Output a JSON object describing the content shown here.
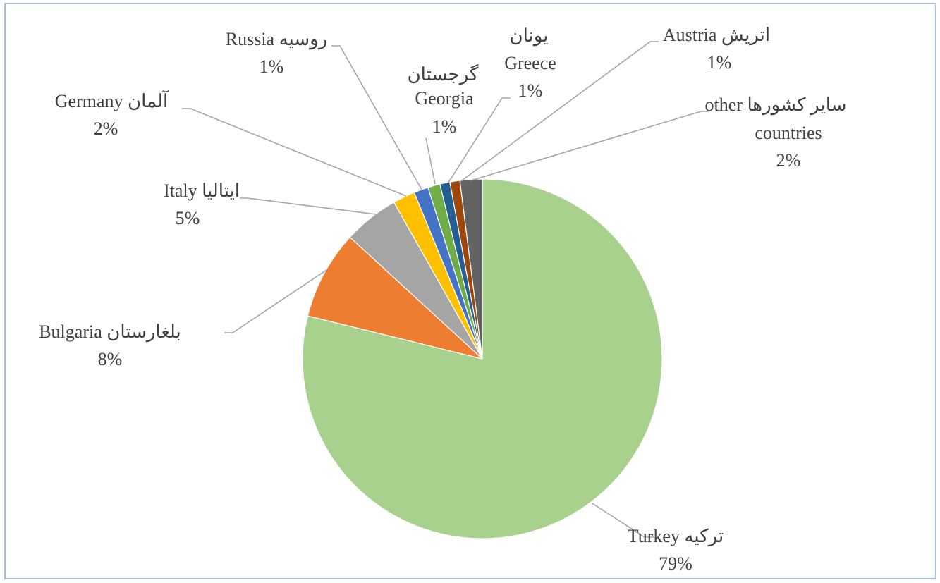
{
  "chart_data": {
    "type": "pie",
    "title": "",
    "start_angle_deg": 0,
    "direction": "clockwise",
    "slices": [
      {
        "label_en": "Turkey",
        "label_fa": "ترکیه",
        "value": 79,
        "pct_label": "79%",
        "color": "#a9d18e"
      },
      {
        "label_en": "Bulgaria",
        "label_fa": "بلغارستان",
        "value": 8,
        "pct_label": "8%",
        "color": "#ed7d31"
      },
      {
        "label_en": "Italy",
        "label_fa": "ایتالیا",
        "value": 5,
        "pct_label": "5%",
        "color": "#a5a5a5"
      },
      {
        "label_en": "Germany",
        "label_fa": "آلمان",
        "value": 2,
        "pct_label": "2%",
        "color": "#ffc000"
      },
      {
        "label_en": "Russia",
        "label_fa": "روسیه",
        "value": 1.3,
        "pct_label": "1%",
        "color": "#4472c4"
      },
      {
        "label_en": "Georgia",
        "label_fa": "گرجستان",
        "value": 1.1,
        "pct_label": "1%",
        "color": "#70ad47"
      },
      {
        "label_en": "Greece",
        "label_fa": "یونان",
        "value": 0.9,
        "pct_label": "1%",
        "color": "#255e91"
      },
      {
        "label_en": "Austria",
        "label_fa": "اتریش",
        "value": 0.9,
        "pct_label": "1%",
        "color": "#9e480e"
      },
      {
        "label_en": "other countries",
        "label_fa": "سایر کشورها",
        "value": 2,
        "pct_label": "2%",
        "color": "#636363"
      }
    ]
  }
}
